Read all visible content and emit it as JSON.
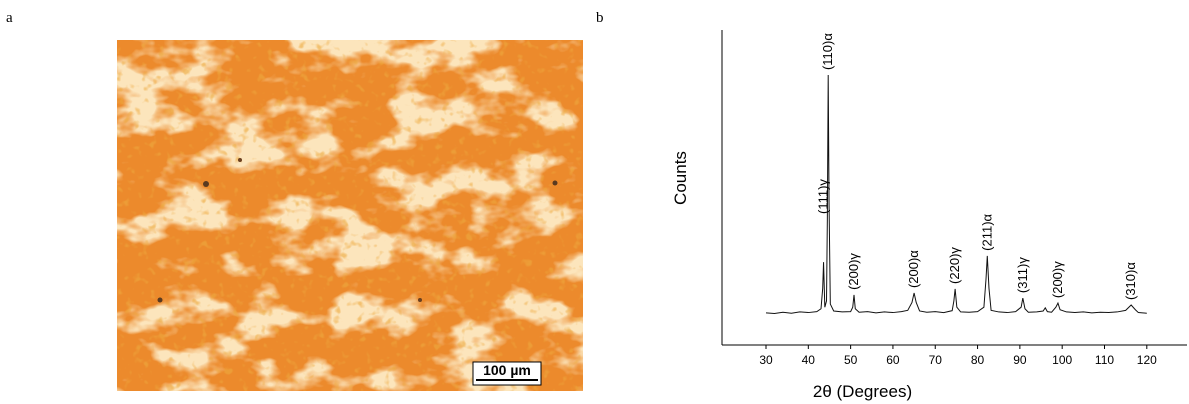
{
  "figure": {
    "panel_a": {
      "label": "a",
      "scale_bar": "100 µm"
    },
    "panel_b": {
      "label": "b"
    }
  },
  "chart_data": {
    "type": "line",
    "xlabel": "2θ (Degrees)",
    "ylabel": "Counts",
    "xlim": [
      19.6,
      129.5
    ],
    "xticks": [
      30,
      40,
      50,
      60,
      70,
      80,
      90,
      100,
      110,
      120
    ],
    "ylim": [
      0,
      100
    ],
    "series": [
      {
        "color": "#111111",
        "x": [
          30,
          32,
          34,
          36,
          38,
          40,
          42,
          43,
          43.4,
          43.6,
          43.9,
          44.3,
          44.5,
          44.7,
          44.9,
          45.2,
          46,
          48,
          50,
          50.5,
          50.8,
          51.1,
          52,
          54,
          56,
          58,
          60,
          62,
          63.5,
          64.5,
          65,
          65.5,
          66.3,
          68,
          70,
          72,
          74,
          74.4,
          74.7,
          75.1,
          76,
          78,
          80,
          81.5,
          82,
          82.3,
          82.7,
          83.2,
          85,
          87,
          89,
          90.3,
          90.7,
          91.2,
          92,
          94,
          95.5,
          96,
          96.5,
          97.5,
          98.5,
          99,
          99.5,
          101,
          103,
          105,
          107,
          109,
          111,
          113,
          115,
          116.3,
          117.3,
          118,
          120
        ],
        "values": [
          10.2,
          10.0,
          10.4,
          10.1,
          10.5,
          10.3,
          10.6,
          11.5,
          18,
          26.3,
          12,
          14,
          40,
          85.7,
          45,
          13,
          10.8,
          10.5,
          10.6,
          12,
          15.9,
          11.5,
          10.4,
          10.6,
          10.2,
          10.5,
          10.3,
          10.6,
          11,
          13.5,
          16.5,
          13.5,
          10.8,
          10.4,
          10.6,
          10.3,
          10.9,
          14,
          17.8,
          12,
          10.5,
          10.4,
          10.6,
          12,
          21,
          28.3,
          18,
          11,
          10.5,
          10.3,
          10.6,
          12,
          14.9,
          11.5,
          10.4,
          10.5,
          10.8,
          11.8,
          10.6,
          10.4,
          12,
          13.3,
          11.2,
          10.5,
          10.3,
          10.5,
          10.2,
          10.4,
          10.3,
          10.5,
          11,
          12.7,
          11.2,
          10.3,
          10.1
        ]
      }
    ],
    "annotations": [
      {
        "text": "(111)γ",
        "x": 43.6
      },
      {
        "text": "(110)α",
        "x": 44.7
      },
      {
        "text": "(200)γ",
        "x": 50.8
      },
      {
        "text": "(200)α",
        "x": 65
      },
      {
        "text": "(220)γ",
        "x": 74.7
      },
      {
        "text": "(211)α",
        "x": 82.3
      },
      {
        "text": "(311)γ",
        "x": 90.7
      },
      {
        "text": "(200)γ",
        "x": 99
      },
      {
        "text": "(310)α",
        "x": 116.3
      }
    ]
  }
}
